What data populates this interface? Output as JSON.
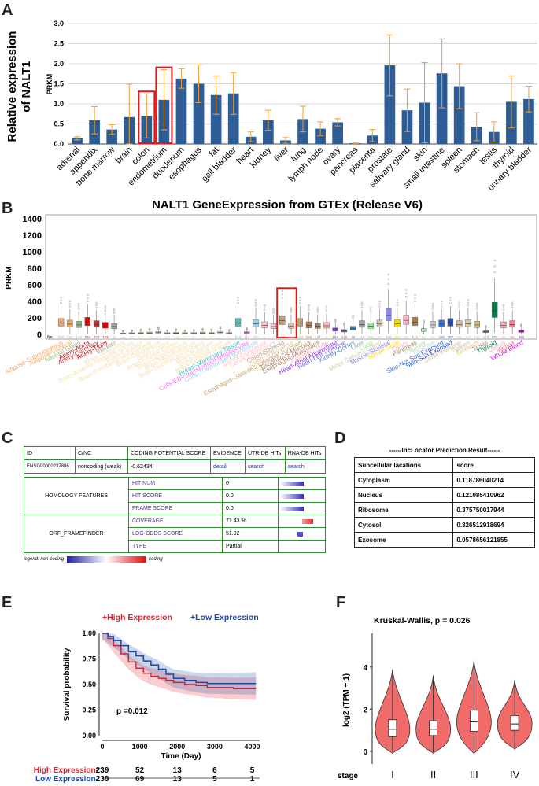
{
  "panels": {
    "a": "A",
    "b": "B",
    "c": "C",
    "d": "D",
    "e": "E",
    "f": "F"
  },
  "panel_a": {
    "outer_ylabel_line1": "Relative expression",
    "outer_ylabel_line2": "of NALT1",
    "chart_data": {
      "type": "bar",
      "ylabel": "PRKM",
      "ylim": [
        0,
        3.0
      ],
      "yticks": [
        "0.0",
        "0.5",
        "1.0",
        "1.5",
        "2.0",
        "2.5",
        "3.0"
      ],
      "categories": [
        "adrenal",
        "appendix",
        "bone marrow",
        "brain",
        "colon",
        "endometrium",
        "duodenum",
        "esophagus",
        "fat",
        "gall bladder",
        "heart",
        "kidney",
        "liver",
        "lung",
        "lymph node",
        "ovary",
        "pancreas",
        "placenta",
        "prostate",
        "salivary gland",
        "skin",
        "small intestine",
        "spleen",
        "stomach",
        "testis",
        "thyroid",
        "urinary bladder"
      ],
      "values": [
        0.14,
        0.59,
        0.36,
        0.67,
        0.7,
        1.1,
        1.63,
        1.5,
        1.22,
        1.26,
        0.18,
        0.59,
        0.09,
        0.62,
        0.38,
        0.54,
        0.02,
        0.21,
        1.96,
        0.84,
        1.03,
        1.76,
        1.44,
        0.43,
        0.3,
        1.05,
        1.12
      ],
      "errors": [
        0.04,
        0.34,
        0.12,
        0.82,
        0.55,
        0.75,
        0.24,
        0.47,
        0.48,
        0.52,
        0.12,
        0.25,
        0.07,
        0.32,
        0.17,
        0.09,
        0.01,
        0.15,
        0.76,
        0.53,
        1.0,
        0.86,
        0.56,
        0.35,
        0.25,
        0.65,
        0.32
      ],
      "highlighted": [
        "colon",
        "endometrium"
      ]
    }
  },
  "panel_b": {
    "chart_data": {
      "type": "box",
      "title": "NALT1 GeneExpression from GTEx (Release V6)",
      "ylabel": "PRKM",
      "ylim": [
        0,
        1400
      ],
      "yticks": [
        "0",
        "200",
        "400",
        "600",
        "800",
        "1000",
        "1200",
        "1400"
      ],
      "n_label": "N=",
      "tissues": [
        "Adipose-Subcutaneous",
        "Adipose-Visceral",
        "Adrenal Gland",
        "Artery-Aorta",
        "Artery-Coronary",
        "Artery-Tibial",
        "Bladder",
        "Brain-Amygdala",
        "Brain-Anterior cingulate cortex",
        "Brain-Caudate",
        "Brain-Cerebellar Hemisphere",
        "Brain-Cerebellum",
        "Brain-Cortex",
        "Brain-Frontal Cortex",
        "Brain-Hippocampus",
        "Brain-Hypothalamus",
        "Brain-Nucleus accumbens",
        "Brain-Putamen",
        "Brain-Spinal cord",
        "Brain-Substantia nigra",
        "Breast-Mammary Tissue",
        "Cells-EBV-transformed lymphocytes",
        "Cells-Transformed fibroblasts",
        "Cervix-Ectocervix",
        "Cervix-Endocervix",
        "Colon-Sigmoid",
        "Colon-Transverse",
        "Esophagus-Gastroesophageal Junction",
        "Esophagus-Mucosa",
        "Esophagus-Muscularis",
        "Fallopian Tube",
        "Heart-Atrial Appendage",
        "Heart-Left Ventricle",
        "Kidney-Cortex",
        "Liver",
        "Lung",
        "Minor Salivary Gland",
        "Muscle-Skeletal",
        "Nerve-Tibial",
        "Ovary",
        "Pancreas",
        "Pituitary",
        "Prostate",
        "Skin-Not Sun Exposed",
        "Skin-Sun Exposed",
        "Small Intestine",
        "Spleen",
        "Stomach",
        "Testis",
        "Thyroid",
        "Uterus",
        "Vagina",
        "Whole Blood"
      ],
      "n": [
        "300",
        "227",
        "145",
        "224",
        "332",
        "133",
        "11",
        "72",
        "84",
        "117",
        "105",
        "125",
        "114",
        "108",
        "94",
        "96",
        "113",
        "97",
        "71",
        "63",
        "214",
        "114",
        "284",
        "6",
        "5",
        "149",
        "196",
        "153",
        "286",
        "247",
        "6",
        "194",
        "218",
        "32",
        "119",
        "300",
        "57",
        "430",
        "304",
        "97",
        "171",
        "80",
        "106",
        "250",
        "357",
        "88",
        "104",
        "193",
        "172",
        "323",
        "83",
        "96",
        "393"
      ],
      "medians": [
        140,
        125,
        115,
        150,
        120,
        105,
        95,
        10,
        12,
        15,
        18,
        22,
        12,
        16,
        12,
        14,
        18,
        15,
        25,
        14,
        140,
        20,
        130,
        110,
        95,
        165,
        100,
        140,
        110,
        100,
        105,
        55,
        40,
        70,
        120,
        100,
        125,
        230,
        130,
        170,
        150,
        50,
        115,
        125,
        140,
        120,
        130,
        115,
        30,
        285,
        110,
        120,
        35
      ],
      "highlighted": [
        "Colon-Sigmoid",
        "Colon-Transverse"
      ]
    }
  },
  "panel_c": {
    "header": {
      "id": "ID",
      "cnc": "C/NC",
      "cps": "CODING POTENTIAL SCORE",
      "evidence": "EVIDENCE",
      "utr": "UTR-DB HITs",
      "rna": "RNA-DB HITs"
    },
    "row": {
      "id": "ENSG00000237886",
      "cnc": "noncoding (weak)",
      "cps": "-0.62434",
      "evidence": "detail",
      "utr": "search",
      "rna": "search"
    },
    "homology_label": "HOMOLOGY FEATURES",
    "orf_label": "ORF_FRAMEFINDER",
    "features": [
      {
        "name": "HIT NUM",
        "value": "0"
      },
      {
        "name": "HIT SCORE",
        "value": "0.0"
      },
      {
        "name": "FRAME SCORE",
        "value": "0.0"
      },
      {
        "name": "COVERAGE",
        "value": "71.43 %"
      },
      {
        "name": "LOG-ODDS SCORE",
        "value": "51.92"
      },
      {
        "name": "TYPE",
        "value": "Partial"
      }
    ],
    "legend_left": "legend: non-coding",
    "legend_right": "coding"
  },
  "panel_d": {
    "title": "------lncLocator Prediction Result------",
    "col1": "Subcellular lacations",
    "col2": "score",
    "rows": [
      {
        "loc": "Cytoplasm",
        "score": "0.118786040214"
      },
      {
        "loc": "Nucleus",
        "score": "0.121085410962"
      },
      {
        "loc": "Ribosome",
        "score": "0.375750017944"
      },
      {
        "loc": "Cytosol",
        "score": "0.326512918694"
      },
      {
        "loc": "Exosome",
        "score": "0.0578656121855"
      }
    ]
  },
  "panel_e": {
    "chart_data": {
      "type": "line",
      "legend": [
        "High Expression",
        "Low Expression"
      ],
      "ylabel": "Survival probability",
      "xlabel": "Time (Day)",
      "yticks": [
        "0.00",
        "0.25",
        "0.50",
        "0.75",
        "1.00"
      ],
      "xticks": [
        "0",
        "1000",
        "2000",
        "3000",
        "4000"
      ],
      "xlim": [
        0,
        4200
      ],
      "ylim": [
        0,
        1
      ],
      "pvalue": "p =0.012",
      "series": [
        {
          "name": "High Expression",
          "x": [
            0,
            150,
            300,
            500,
            700,
            900,
            1100,
            1300,
            1500,
            1700,
            1900,
            2200,
            2500,
            2800,
            3100,
            3500,
            4000,
            4100
          ],
          "y": [
            1.0,
            0.95,
            0.88,
            0.8,
            0.72,
            0.66,
            0.61,
            0.58,
            0.56,
            0.54,
            0.52,
            0.5,
            0.49,
            0.47,
            0.47,
            0.46,
            0.46,
            0.46
          ]
        },
        {
          "name": "Low Expression",
          "x": [
            0,
            150,
            300,
            500,
            700,
            900,
            1100,
            1300,
            1500,
            1700,
            1900,
            2200,
            2500,
            2800,
            3100,
            3500,
            4000,
            4100
          ],
          "y": [
            1.0,
            0.97,
            0.93,
            0.88,
            0.82,
            0.78,
            0.73,
            0.69,
            0.65,
            0.6,
            0.56,
            0.54,
            0.52,
            0.51,
            0.51,
            0.51,
            0.51,
            0.51
          ]
        }
      ]
    },
    "risk_table": [
      {
        "label": "High Expression",
        "values": [
          "239",
          "52",
          "13",
          "6",
          "5"
        ]
      },
      {
        "label": "Low Expression",
        "values": [
          "238",
          "69",
          "13",
          "5",
          "1"
        ]
      }
    ],
    "risk_xticks": [
      "0",
      "1000",
      "2000",
      "3000",
      "4000"
    ]
  },
  "panel_f": {
    "chart_data": {
      "type": "violin",
      "title": "Kruskal-Wallis, p = 0.026",
      "ylabel": "log2 (TPM + 1)",
      "xlabel": "stage",
      "categories": [
        "I",
        "II",
        "III",
        "IV"
      ],
      "yticks": [
        "0",
        "2",
        "4"
      ],
      "ylim": [
        -0.6,
        5.6
      ],
      "medians": [
        1.05,
        1.05,
        1.4,
        1.3
      ],
      "q1": [
        0.7,
        0.75,
        0.95,
        1.0
      ],
      "q3": [
        1.5,
        1.45,
        1.95,
        1.7
      ],
      "max": [
        3.9,
        3.6,
        4.3,
        3.4
      ],
      "min": [
        -0.1,
        -0.1,
        -0.1,
        0.1
      ]
    }
  }
}
